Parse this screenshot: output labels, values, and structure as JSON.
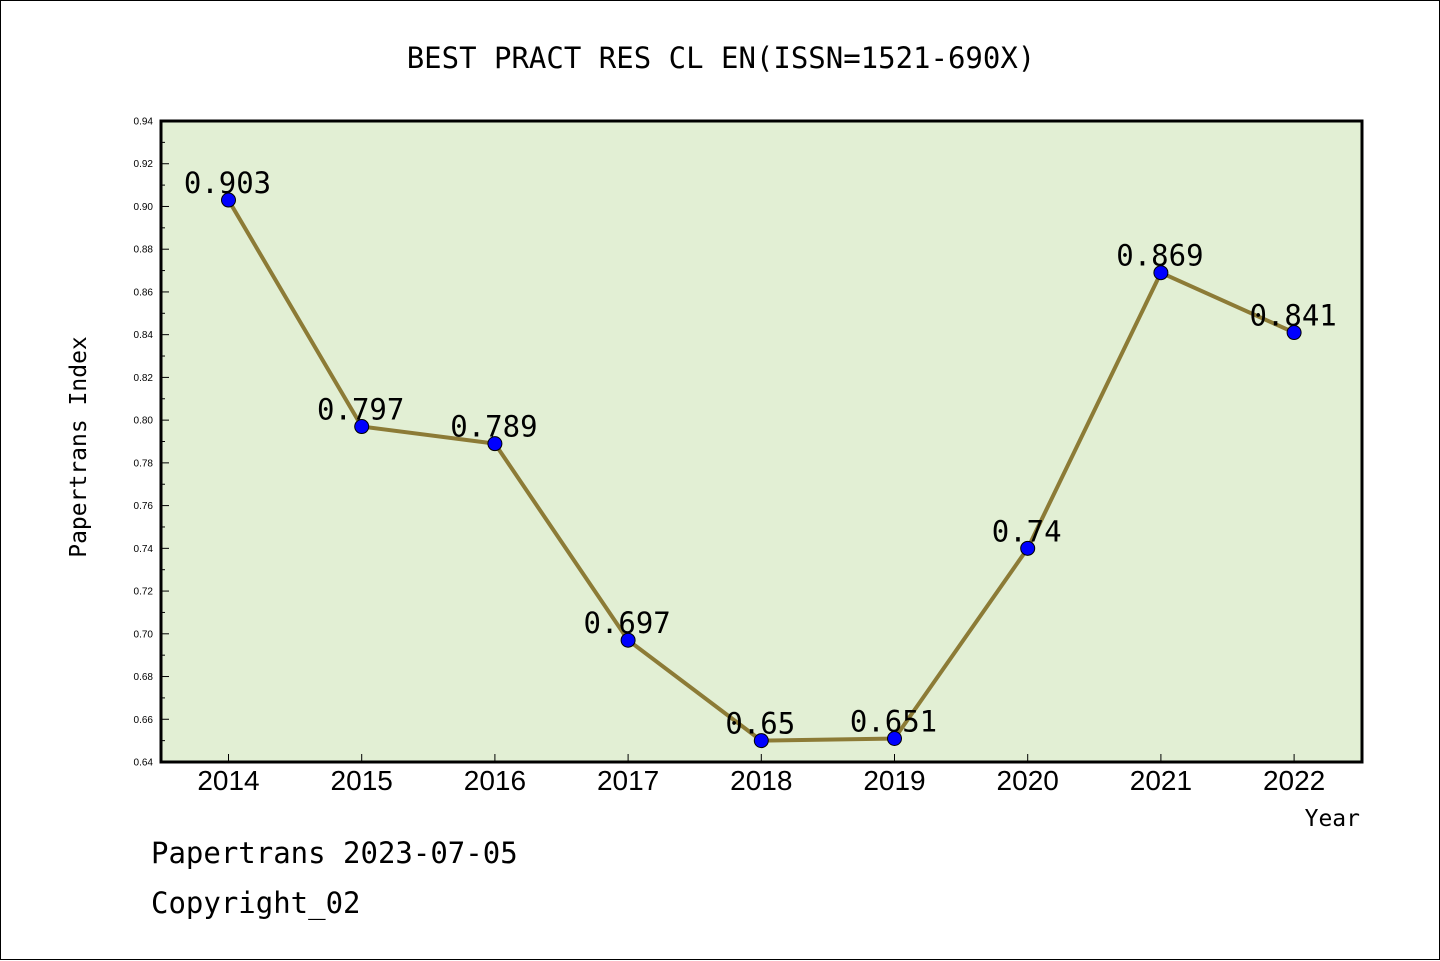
{
  "chart_data": {
    "type": "line",
    "title": "BEST PRACT RES CL EN(ISSN=1521-690X)",
    "xlabel": "Year",
    "ylabel": "Papertrans Index",
    "categories": [
      "2014",
      "2015",
      "2016",
      "2017",
      "2018",
      "2019",
      "2020",
      "2021",
      "2022"
    ],
    "values": [
      0.903,
      0.797,
      0.789,
      0.697,
      0.65,
      0.651,
      0.74,
      0.869,
      0.841
    ],
    "data_labels": [
      "0.903",
      "0.797",
      "0.789",
      "0.697",
      "0.65",
      "0.651",
      "0.74",
      "0.869",
      "0.841"
    ],
    "ylim": [
      0.64,
      0.94
    ],
    "yticks": [
      "0.64",
      "0.66",
      "0.68",
      "0.70",
      "0.72",
      "0.74",
      "0.76",
      "0.78",
      "0.80",
      "0.82",
      "0.84",
      "0.86",
      "0.88",
      "0.90",
      "0.92",
      "0.94"
    ],
    "grid": false,
    "colors": {
      "plot_background": "#e2efd4",
      "line": "#8c7b36",
      "marker": "#0000ff"
    }
  },
  "footer": {
    "line1": "Papertrans 2023-07-05",
    "line2": "Copyright_02"
  }
}
